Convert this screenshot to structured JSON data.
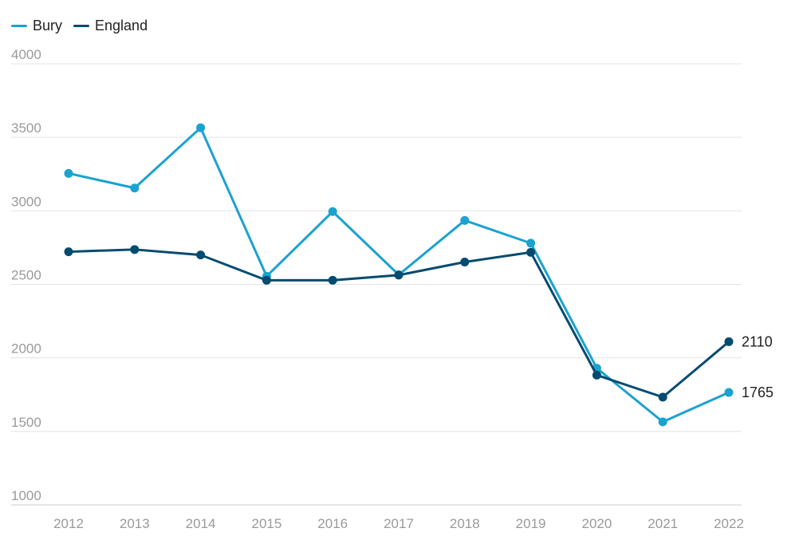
{
  "chart_data": {
    "type": "line",
    "x": [
      "2012",
      "2013",
      "2014",
      "2015",
      "2016",
      "2017",
      "2018",
      "2019",
      "2020",
      "2021",
      "2022"
    ],
    "series": [
      {
        "name": "Bury",
        "color": "#1ba2d0",
        "values": [
          3255,
          3155,
          3565,
          2555,
          2995,
          2565,
          2935,
          2780,
          1930,
          1565,
          1765
        ]
      },
      {
        "name": "England",
        "color": "#044b70",
        "values": [
          2722,
          2737,
          2700,
          2528,
          2528,
          2563,
          2652,
          2718,
          1883,
          1733,
          2110
        ]
      }
    ],
    "end_labels": [
      {
        "series": "England",
        "text": "2110"
      },
      {
        "series": "Bury",
        "text": "1765"
      }
    ],
    "y_ticks": [
      "1000",
      "1500",
      "2000",
      "2500",
      "3000",
      "3500",
      "4000"
    ],
    "ylim": [
      1000,
      4000
    ],
    "grid": true,
    "legend_position": "top-left"
  }
}
